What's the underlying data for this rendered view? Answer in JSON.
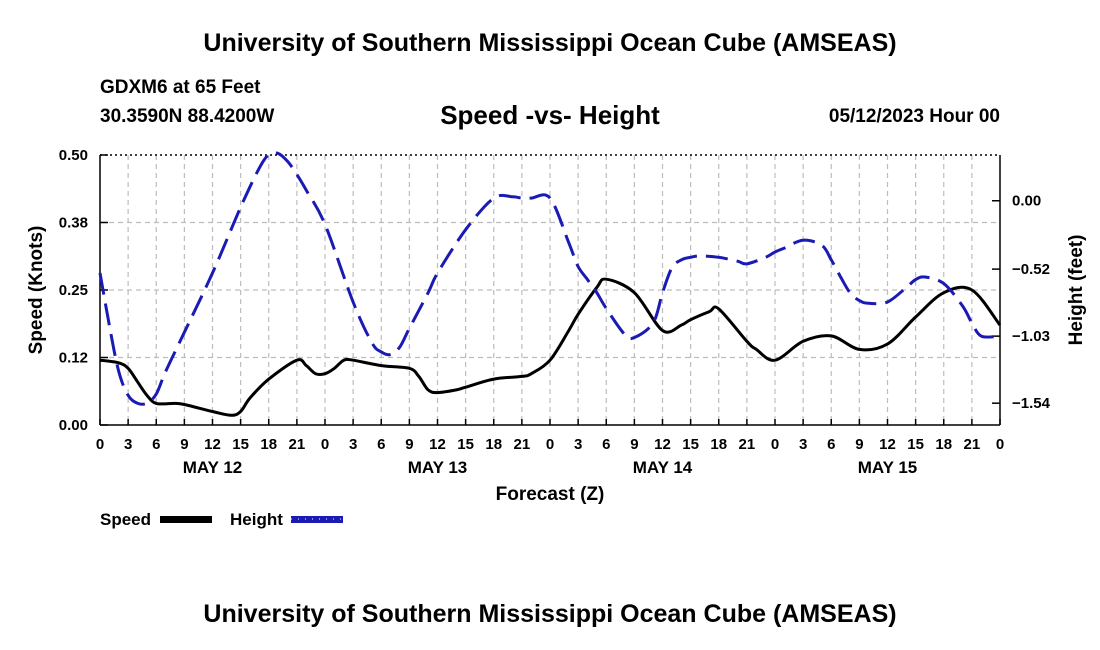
{
  "page_title": "University of Southern Mississippi Ocean Cube (AMSEAS)",
  "station": "GDXM6 at 65 Feet",
  "coordinates": "30.3590N  88.4200W",
  "date": "05/12/2023 Hour 00",
  "footer_title": "University of Southern Mississippi Ocean Cube (AMSEAS)",
  "colors": {
    "speed": "#000000",
    "height": "#1a1ab4",
    "grid": "#bdbdbd"
  },
  "chart_data": {
    "type": "line",
    "title": "Speed -vs- Height",
    "xlabel": "Forecast (Z)",
    "ylabel": "Speed (Knots)",
    "y2label": "Height (feet)",
    "x_range_hours": [
      0,
      96
    ],
    "x_tick_step_hours": 3,
    "x_tick_labels": [
      "0",
      "3",
      "6",
      "9",
      "12",
      "15",
      "18",
      "21",
      "0",
      "3",
      "6",
      "9",
      "12",
      "15",
      "18",
      "21",
      "0",
      "3",
      "6",
      "9",
      "12",
      "15",
      "18",
      "21",
      "0",
      "3",
      "6",
      "9",
      "12",
      "15",
      "18",
      "21",
      "0"
    ],
    "day_labels": [
      {
        "label": "MAY 12",
        "hour": 12
      },
      {
        "label": "MAY 13",
        "hour": 36
      },
      {
        "label": "MAY 14",
        "hour": 60
      },
      {
        "label": "MAY 15",
        "hour": 84
      }
    ],
    "ylim": [
      0,
      0.5
    ],
    "y_ticks": [
      0.0,
      0.125,
      0.25,
      0.375,
      0.5
    ],
    "y_tick_labels": [
      "0.00",
      "0.12",
      "0.25",
      "0.38",
      "0.50"
    ],
    "y2lim": [
      -1.706,
      0.348
    ],
    "y2_ticks": [
      -1.54,
      -1.03,
      -0.52,
      0.0
    ],
    "y2_tick_labels": [
      "−1.54",
      "−1.03",
      "−0.52",
      "0.00"
    ],
    "legend": [
      {
        "name": "Speed",
        "style": "solid"
      },
      {
        "name": "Height",
        "style": "dashed"
      }
    ],
    "series": [
      {
        "name": "Speed",
        "axis": "left",
        "x": [
          0,
          2,
          3,
          4,
          5,
          6,
          8,
          9,
          12,
          14,
          15,
          16,
          18,
          21,
          22,
          23,
          24,
          25,
          26,
          27,
          30,
          33,
          34,
          35,
          36,
          38,
          39,
          42,
          45,
          46,
          48,
          50,
          51,
          53,
          54,
          57,
          60,
          62,
          63,
          65,
          66,
          69,
          70,
          72,
          75,
          78,
          81,
          84,
          87,
          90,
          93,
          96
        ],
        "values": [
          0.12,
          0.115,
          0.105,
          0.08,
          0.055,
          0.04,
          0.04,
          0.038,
          0.025,
          0.018,
          0.025,
          0.05,
          0.085,
          0.12,
          0.11,
          0.095,
          0.095,
          0.105,
          0.12,
          0.12,
          0.11,
          0.105,
          0.09,
          0.065,
          0.06,
          0.065,
          0.07,
          0.085,
          0.09,
          0.095,
          0.12,
          0.175,
          0.205,
          0.255,
          0.27,
          0.245,
          0.175,
          0.185,
          0.195,
          0.21,
          0.215,
          0.155,
          0.14,
          0.12,
          0.155,
          0.165,
          0.14,
          0.15,
          0.2,
          0.245,
          0.25,
          0.185
        ]
      },
      {
        "name": "Height",
        "axis": "right",
        "x": [
          0,
          1,
          2,
          3,
          4,
          5,
          6,
          7,
          9,
          12,
          15,
          17,
          18,
          19,
          20,
          21,
          22,
          24,
          27,
          29,
          30,
          31,
          32,
          33,
          35,
          36,
          39,
          42,
          44,
          45,
          46,
          48,
          50,
          51,
          52,
          53,
          54,
          56,
          57,
          59,
          60,
          61,
          62,
          63,
          64,
          66,
          68,
          69,
          71,
          72,
          73,
          75,
          77,
          78,
          79,
          80,
          81,
          82,
          84,
          86,
          87,
          88,
          90,
          92,
          93,
          94,
          96
        ],
        "values": [
          -0.55,
          -0.95,
          -1.3,
          -1.48,
          -1.54,
          -1.54,
          -1.47,
          -1.3,
          -1.0,
          -0.55,
          -0.05,
          0.25,
          0.35,
          0.36,
          0.3,
          0.2,
          0.08,
          -0.18,
          -0.77,
          -1.08,
          -1.15,
          -1.17,
          -1.11,
          -0.97,
          -0.7,
          -0.55,
          -0.22,
          0.02,
          0.03,
          0.02,
          0.02,
          0.02,
          -0.32,
          -0.5,
          -0.6,
          -0.7,
          -0.82,
          -1.02,
          -1.04,
          -0.93,
          -0.7,
          -0.51,
          -0.45,
          -0.43,
          -0.42,
          -0.43,
          -0.46,
          -0.48,
          -0.43,
          -0.39,
          -0.36,
          -0.3,
          -0.34,
          -0.45,
          -0.58,
          -0.7,
          -0.76,
          -0.78,
          -0.77,
          -0.66,
          -0.6,
          -0.58,
          -0.63,
          -0.8,
          -0.93,
          -1.03,
          -1.03
        ]
      }
    ]
  }
}
